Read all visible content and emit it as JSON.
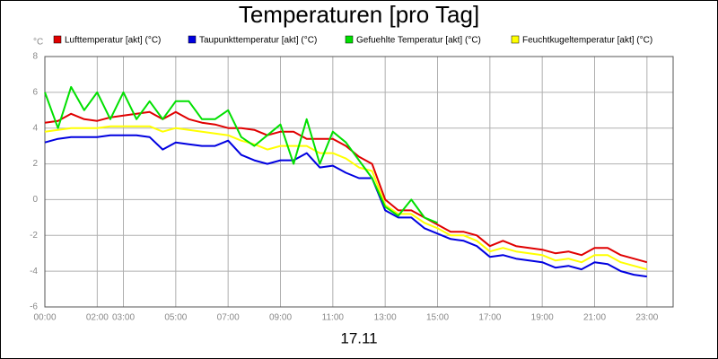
{
  "chart_data": {
    "type": "line",
    "title": "Temperaturen [pro Tag]",
    "y_unit": "°C",
    "x_label": "17.11",
    "x": [
      0,
      0.5,
      1,
      1.5,
      2,
      2.5,
      3,
      3.5,
      4,
      4.5,
      5,
      5.5,
      6,
      6.5,
      7,
      7.5,
      8,
      8.5,
      9,
      9.5,
      10,
      10.5,
      11,
      11.5,
      12,
      12.5,
      13,
      13.5,
      14,
      14.5,
      15,
      15.5,
      16,
      16.5,
      17,
      17.5,
      18,
      18.5,
      19,
      19.5,
      20,
      20.5,
      21,
      21.5,
      22,
      22.5,
      23
    ],
    "xlim": [
      0,
      24
    ],
    "xticks": [
      {
        "value": 0,
        "label": "00:00"
      },
      {
        "value": 2,
        "label": "02:00"
      },
      {
        "value": 3,
        "label": "03:00"
      },
      {
        "value": 5,
        "label": "05:00"
      },
      {
        "value": 7,
        "label": "07:00"
      },
      {
        "value": 9,
        "label": "09:00"
      },
      {
        "value": 11,
        "label": "11:00"
      },
      {
        "value": 13,
        "label": "13:00"
      },
      {
        "value": 15,
        "label": "15:00"
      },
      {
        "value": 17,
        "label": "17:00"
      },
      {
        "value": 19,
        "label": "19:00"
      },
      {
        "value": 21,
        "label": "21:00"
      },
      {
        "value": 23,
        "label": "23:00"
      }
    ],
    "ylim": [
      -6,
      8
    ],
    "yticks": [
      -6,
      -4,
      -2,
      0,
      2,
      4,
      6,
      8
    ],
    "grid": true,
    "series": [
      {
        "name": "Lufttemperatur [akt] (°C)",
        "color": "#e00000",
        "values": [
          4.3,
          4.4,
          4.8,
          4.5,
          4.4,
          4.6,
          4.7,
          4.8,
          4.9,
          4.5,
          4.9,
          4.5,
          4.3,
          4.2,
          4.0,
          4.0,
          3.9,
          3.6,
          3.8,
          3.8,
          3.4,
          3.4,
          3.4,
          3.0,
          2.4,
          2.0,
          0.0,
          -0.6,
          -0.6,
          -1.0,
          -1.4,
          -1.8,
          -1.8,
          -2.0,
          -2.6,
          -2.3,
          -2.6,
          -2.7,
          -2.8,
          -3.0,
          -2.9,
          -3.1,
          -2.7,
          -2.7,
          -3.1,
          -3.3,
          -3.5
        ]
      },
      {
        "name": "Taupunkttemperatur [akt] (°C)",
        "color": "#0000e0",
        "values": [
          3.2,
          3.4,
          3.5,
          3.5,
          3.5,
          3.6,
          3.6,
          3.6,
          3.5,
          2.8,
          3.2,
          3.1,
          3.0,
          3.0,
          3.3,
          2.5,
          2.2,
          2.0,
          2.2,
          2.2,
          2.6,
          1.8,
          1.9,
          1.5,
          1.2,
          1.2,
          -0.6,
          -1.0,
          -1.0,
          -1.6,
          -1.9,
          -2.2,
          -2.3,
          -2.6,
          -3.2,
          -3.1,
          -3.3,
          -3.4,
          -3.5,
          -3.8,
          -3.7,
          -3.9,
          -3.5,
          -3.6,
          -4.0,
          -4.2,
          -4.3
        ]
      },
      {
        "name": "Gefuehlte Temperatur [akt] (°C)",
        "color": "#00e000",
        "values": [
          6.0,
          4.0,
          6.3,
          5.0,
          6.0,
          4.5,
          6.0,
          4.5,
          5.5,
          4.5,
          5.5,
          5.5,
          4.5,
          4.5,
          5.0,
          3.5,
          3.0,
          3.6,
          4.2,
          2.0,
          4.5,
          2.0,
          3.8,
          3.2,
          2.2,
          1.2,
          -0.4,
          -0.9,
          0.0,
          -1.0,
          -1.3,
          null,
          null,
          null,
          null,
          null,
          null,
          null,
          null,
          null,
          null,
          null,
          null,
          null,
          null,
          null,
          null
        ]
      },
      {
        "name": "Feuchtkugeltemperatur [akt] (°C)",
        "color": "#ffff00",
        "values": [
          3.8,
          3.9,
          4.0,
          4.0,
          4.0,
          4.1,
          4.1,
          4.1,
          4.1,
          3.8,
          4.0,
          3.9,
          3.8,
          3.7,
          3.6,
          3.3,
          3.1,
          2.8,
          3.0,
          3.0,
          3.0,
          2.6,
          2.6,
          2.3,
          1.8,
          1.6,
          -0.3,
          -0.8,
          -0.8,
          -1.3,
          -1.6,
          -2.0,
          -2.0,
          -2.3,
          -2.9,
          -2.7,
          -2.9,
          -3.0,
          -3.1,
          -3.4,
          -3.3,
          -3.5,
          -3.1,
          -3.1,
          -3.5,
          -3.7,
          -3.9
        ]
      }
    ]
  }
}
